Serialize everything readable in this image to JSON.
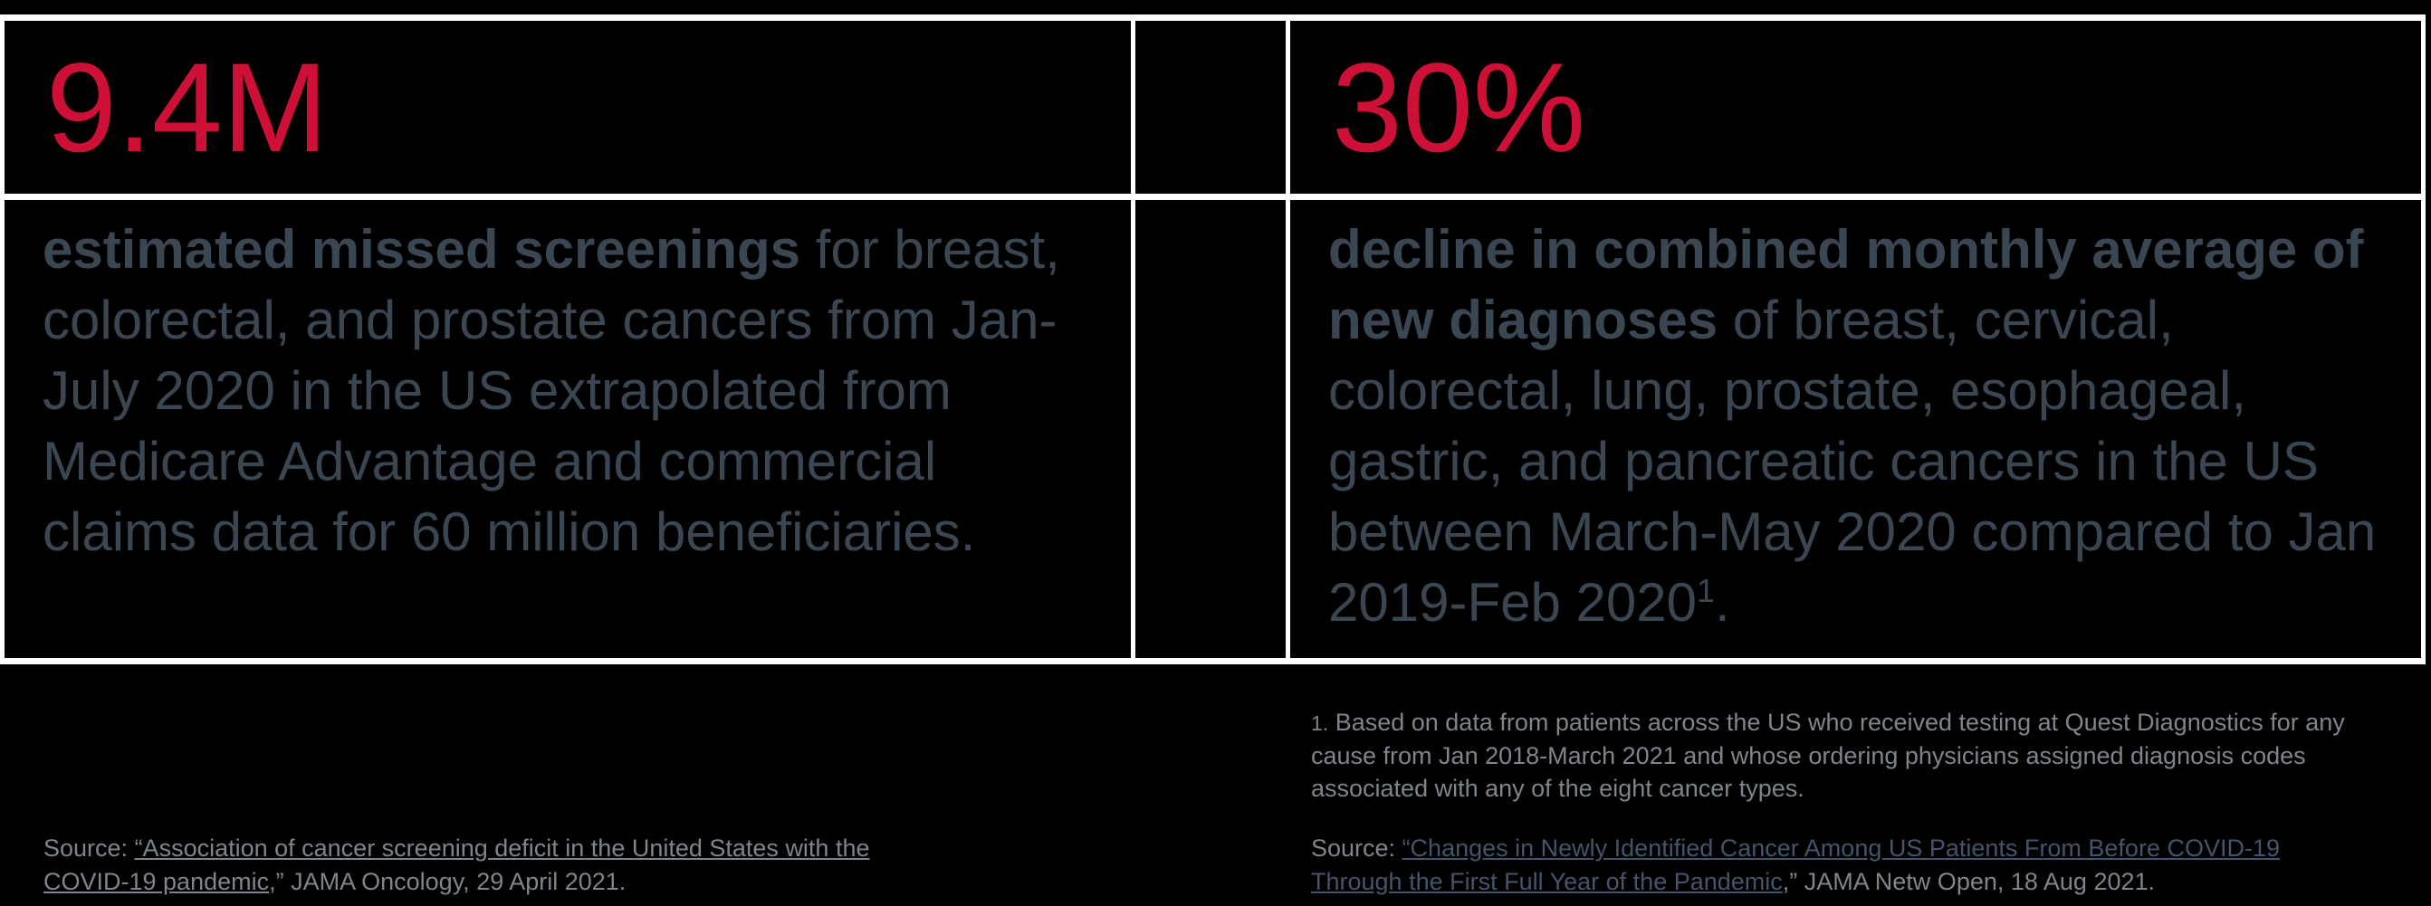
{
  "colors": {
    "background": "#000000",
    "border": "#ffffff",
    "accent_red": "#ce1037",
    "body_text": "#3a4752",
    "muted_text": "#7e858c",
    "link_left": "#7e858c",
    "link_right": "#44546a"
  },
  "stats": [
    {
      "value": "9.4M",
      "description_bold": "estimated missed screenings",
      "description_rest": " for breast, colorectal, and prostate cancers from Jan-July 2020 in the US extrapolated from Medicare Advantage and commercial claims data for 60 million beneficiaries."
    },
    {
      "value": "30%",
      "description_bold": "decline in combined monthly average of new diagnoses",
      "description_rest": " of breast, cervical, colorectal, lung, prostate, esophageal, gastric, and pancreatic cancers in the US between March-May 2020 compared to Jan 2019-Feb 2020",
      "description_sup": "1",
      "description_end": "."
    }
  ],
  "footnote": {
    "marker": "1.",
    "text": " Based on data from patients across the US who received testing at Quest Diagnostics for any cause from Jan 2018-March 2021 and whose ordering physicians assigned diagnosis codes associated with any of the eight cancer types."
  },
  "sources": {
    "left": {
      "prefix": "Source: ",
      "link": "“Association of cancer screening deficit in the United States with the COVID-19 pandemic",
      "suffix": ",” JAMA Oncology, 29 April 2021."
    },
    "right": {
      "prefix": "Source: ",
      "link": "“Changes in Newly Identified Cancer Among US Patients From Before COVID-19 Through the First Full Year of the Pandemic",
      "suffix": ",” JAMA Netw Open, 18 Aug 2021."
    }
  }
}
